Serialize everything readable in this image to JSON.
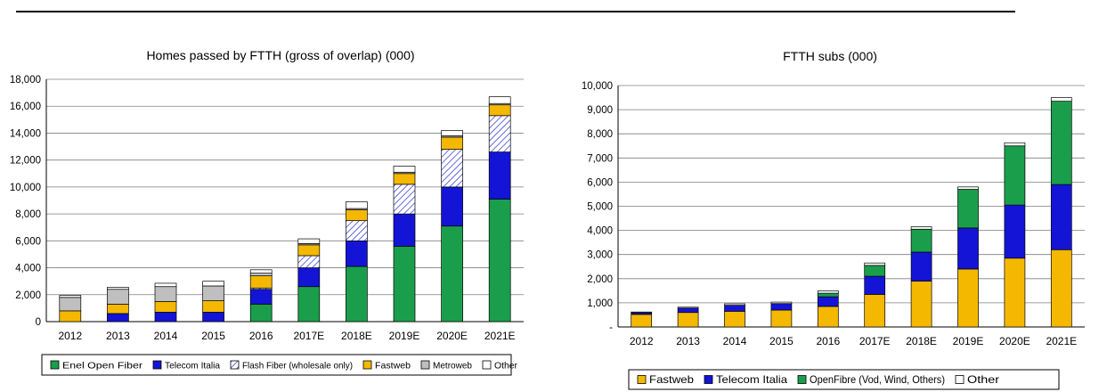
{
  "chart_data": [
    {
      "type": "bar",
      "stacked": true,
      "title": "Homes passed by FTTH (gross of overlap) (000)",
      "xlabel": "",
      "ylabel": "",
      "categories": [
        "2012",
        "2013",
        "2014",
        "2015",
        "2016",
        "2017E",
        "2018E",
        "2019E",
        "2020E",
        "2021E"
      ],
      "ylim": [
        0,
        18000
      ],
      "y_ticks": [
        "0",
        "2,000",
        "4,000",
        "6,000",
        "8,000",
        "10,000",
        "12,000",
        "14,000",
        "16,000",
        "18,000"
      ],
      "grid": true,
      "legend_position": "bottom",
      "series": [
        {
          "name": "Enel Open Fiber",
          "color": "#1b9e4b",
          "pattern": "solid",
          "values": [
            0,
            0,
            0,
            0,
            1300,
            2600,
            4100,
            5600,
            7100,
            9100
          ]
        },
        {
          "name": "Telecom Italia",
          "color": "#1414d6",
          "pattern": "solid",
          "values": [
            0,
            600,
            700,
            700,
            1100,
            1400,
            1900,
            2400,
            2900,
            3500
          ]
        },
        {
          "name": "Flash Fiber (wholesale only)",
          "color": "#2a2ad0",
          "pattern": "hatch",
          "values": [
            0,
            0,
            0,
            0,
            100,
            900,
            1500,
            2200,
            2800,
            2700
          ]
        },
        {
          "name": "Fastweb",
          "color": "#f5b800",
          "pattern": "solid",
          "values": [
            800,
            700,
            800,
            850,
            900,
            800,
            800,
            800,
            900,
            800
          ]
        },
        {
          "name": "Metroweb",
          "color": "#bfbfbf",
          "pattern": "solid",
          "values": [
            1000,
            1100,
            1100,
            1100,
            200,
            100,
            100,
            100,
            100,
            100
          ]
        },
        {
          "name": "Other",
          "color": "#ffffff",
          "pattern": "solid",
          "values": [
            150,
            150,
            250,
            350,
            250,
            350,
            500,
            450,
            400,
            500
          ]
        }
      ]
    },
    {
      "type": "bar",
      "stacked": true,
      "title": "FTTH subs (000)",
      "xlabel": "",
      "ylabel": "",
      "categories": [
        "2012",
        "2013",
        "2014",
        "2015",
        "2016",
        "2017E",
        "2018E",
        "2019E",
        "2020E",
        "2021E"
      ],
      "ylim": [
        0,
        10000
      ],
      "y_ticks": [
        "-",
        "1,000",
        "2,000",
        "3,000",
        "4,000",
        "5,000",
        "6,000",
        "7,000",
        "8,000",
        "9,000",
        "10,000"
      ],
      "grid": true,
      "legend_position": "bottom",
      "series": [
        {
          "name": "Fastweb",
          "color": "#f5b800",
          "pattern": "solid",
          "values": [
            520,
            600,
            650,
            700,
            850,
            1350,
            1900,
            2400,
            2850,
            3200
          ]
        },
        {
          "name": "Telecom Italia",
          "color": "#1414d6",
          "pattern": "solid",
          "values": [
            70,
            180,
            250,
            270,
            400,
            750,
            1200,
            1700,
            2200,
            2700
          ]
        },
        {
          "name": "OpenFibre (Vod, Wind, Others)",
          "color": "#1b9e4b",
          "pattern": "solid",
          "values": [
            0,
            0,
            0,
            0,
            150,
            450,
            950,
            1600,
            2450,
            3450
          ]
        },
        {
          "name": "Other",
          "color": "#ffffff",
          "pattern": "solid",
          "values": [
            30,
            40,
            60,
            60,
            100,
            100,
            100,
            100,
            130,
            150
          ]
        }
      ]
    }
  ]
}
